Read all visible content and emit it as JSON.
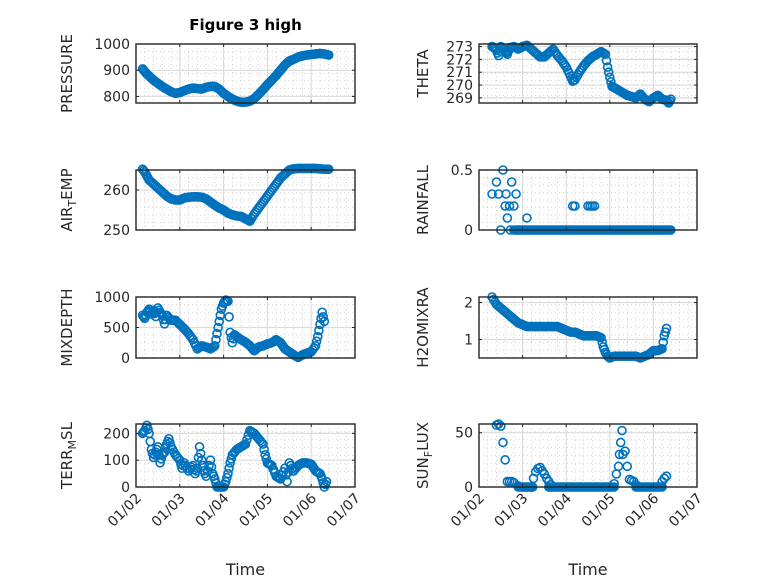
{
  "figure": {
    "title": "Figure 3 high",
    "marker_color": "#0072BD",
    "axis_color": "#262626"
  },
  "chart_data": [
    {
      "type": "scatter",
      "title": "Figure 3 high",
      "ylabel": "PRESSURE",
      "ylabel_sub": "",
      "xlabel": "",
      "ylim": [
        775,
        1000
      ],
      "yticks": [
        800,
        900,
        1000
      ],
      "ytick_labels": [
        "800",
        "900",
        "1000"
      ],
      "xlim": [
        0,
        5
      ],
      "xticks": [
        0,
        1,
        2,
        3,
        4,
        5
      ],
      "xtick_labels": [],
      "grid": true,
      "minor_grid": true,
      "x": [
        0.15,
        0.2,
        0.25,
        0.3,
        0.35,
        0.4,
        0.5,
        0.6,
        0.7,
        0.8,
        0.9,
        1.0,
        1.1,
        1.2,
        1.3,
        1.4,
        1.5,
        1.6,
        1.7,
        1.8,
        1.9,
        2.0,
        2.1,
        2.2,
        2.3,
        2.4,
        2.5,
        2.6,
        2.7,
        2.8,
        2.9,
        3.0,
        3.1,
        3.2,
        3.3,
        3.4,
        3.5,
        3.6,
        3.7,
        3.8,
        3.9,
        4.0,
        4.1,
        4.2,
        4.3,
        4.4
      ],
      "y": [
        905,
        895,
        885,
        878,
        870,
        862,
        850,
        838,
        828,
        818,
        812,
        815,
        822,
        828,
        832,
        830,
        828,
        835,
        838,
        838,
        828,
        812,
        800,
        790,
        782,
        778,
        778,
        782,
        792,
        808,
        826,
        845,
        862,
        880,
        900,
        920,
        935,
        942,
        950,
        955,
        958,
        960,
        962,
        964,
        962,
        958
      ]
    },
    {
      "type": "scatter",
      "title": "",
      "ylabel": "THETA",
      "ylabel_sub": "",
      "xlabel": "",
      "ylim": [
        268.6,
        273.2
      ],
      "yticks": [
        269,
        270,
        271,
        272,
        273
      ],
      "ytick_labels": [
        "269",
        "270",
        "271",
        "272",
        "273"
      ],
      "xlim": [
        0,
        5
      ],
      "xticks": [
        0,
        1,
        2,
        3,
        4,
        5
      ],
      "xtick_labels": [],
      "grid": true,
      "minor_grid": true,
      "x": [
        0.3,
        0.35,
        0.4,
        0.45,
        0.5,
        0.55,
        0.6,
        0.65,
        0.7,
        0.8,
        0.9,
        1.0,
        1.1,
        1.2,
        1.3,
        1.4,
        1.5,
        1.6,
        1.7,
        1.8,
        1.9,
        2.0,
        2.1,
        2.15,
        2.2,
        2.3,
        2.4,
        2.5,
        2.6,
        2.7,
        2.8,
        2.9,
        2.95,
        3.0,
        3.05,
        3.1,
        3.2,
        3.3,
        3.4,
        3.5,
        3.6,
        3.7,
        3.8,
        3.9,
        4.0,
        4.1,
        4.2,
        4.3,
        4.35,
        4.4
      ],
      "y": [
        273,
        272.9,
        272.7,
        272.3,
        273,
        272.8,
        272.6,
        272.4,
        272.9,
        273,
        272.8,
        273,
        273.1,
        272.8,
        272.5,
        272.2,
        272.2,
        272.5,
        272.8,
        272.3,
        271.9,
        271.4,
        270.7,
        270.3,
        270.4,
        271,
        271.5,
        271.9,
        272.2,
        272.4,
        272.6,
        272.4,
        271.4,
        270.6,
        269.9,
        269.8,
        269.6,
        269.4,
        269.2,
        269.1,
        269,
        269.3,
        268.9,
        268.7,
        269,
        269.2,
        268.9,
        268.8,
        268.6,
        268.9
      ]
    },
    {
      "type": "scatter",
      "title": "",
      "ylabel": "AIR",
      "ylabel_sub": "T",
      "ylabel_rest": "EMP",
      "xlabel": "",
      "ylim": [
        250,
        265
      ],
      "yticks": [
        250,
        260
      ],
      "ytick_labels": [
        "250",
        "260"
      ],
      "xlim": [
        0,
        5
      ],
      "xticks": [
        0,
        1,
        2,
        3,
        4,
        5
      ],
      "xtick_labels": [],
      "grid": true,
      "minor_grid": true,
      "x": [
        0.15,
        0.2,
        0.25,
        0.3,
        0.4,
        0.5,
        0.6,
        0.7,
        0.8,
        0.9,
        1.0,
        1.1,
        1.2,
        1.3,
        1.4,
        1.5,
        1.6,
        1.7,
        1.8,
        1.9,
        2.0,
        2.1,
        2.2,
        2.3,
        2.4,
        2.5,
        2.6,
        2.7,
        2.8,
        2.9,
        3.0,
        3.1,
        3.2,
        3.3,
        3.4,
        3.5,
        3.6,
        3.7,
        3.8,
        3.9,
        4.0,
        4.1,
        4.2,
        4.3,
        4.4
      ],
      "y": [
        265.2,
        264.5,
        263.5,
        262.5,
        261.5,
        260.5,
        259.5,
        258.5,
        257.8,
        257.5,
        257.5,
        258,
        258.2,
        258.3,
        258.3,
        258.2,
        257.8,
        257,
        256.2,
        255.5,
        255,
        254.2,
        253.8,
        253.5,
        253.4,
        252.8,
        252.2,
        254,
        255.5,
        257,
        258.5,
        260,
        261.5,
        263,
        264,
        265,
        265.3,
        265.4,
        265.4,
        265.4,
        265.4,
        265.4,
        265.3,
        265.2,
        265.2
      ]
    },
    {
      "type": "scatter",
      "title": "",
      "ylabel": "RAINFALL",
      "ylabel_sub": "",
      "xlabel": "",
      "ylim": [
        0,
        0.5
      ],
      "yticks": [
        0,
        0.5
      ],
      "ytick_labels": [
        "0",
        "0.5"
      ],
      "xlim": [
        0,
        5
      ],
      "xticks": [
        0,
        1,
        2,
        3,
        4,
        5
      ],
      "xtick_labels": [],
      "grid": true,
      "minor_grid": true,
      "x": [
        0.3,
        0.4,
        0.45,
        0.5,
        0.55,
        0.6,
        0.62,
        0.65,
        0.7,
        0.72,
        0.75,
        0.8,
        0.85,
        0.9,
        1.1,
        2.15,
        2.2,
        2.5,
        2.55,
        2.6,
        2.65
      ],
      "y": [
        0.3,
        0.4,
        0.3,
        0,
        0.5,
        0.2,
        0.3,
        0.1,
        0.2,
        0,
        0.4,
        0.2,
        0.3,
        0,
        0.1,
        0.2,
        0.2,
        0.2,
        0.2,
        0.2,
        0.2
      ],
      "zero_run": [
        0.8,
        4.4
      ]
    },
    {
      "type": "scatter",
      "title": "",
      "ylabel": "MIXDEPTH",
      "ylabel_sub": "",
      "xlabel": "",
      "ylim": [
        0,
        1000
      ],
      "yticks": [
        0,
        500,
        1000
      ],
      "ytick_labels": [
        "0",
        "500",
        "1000"
      ],
      "xlim": [
        0,
        5
      ],
      "xticks": [
        0,
        1,
        2,
        3,
        4,
        5
      ],
      "xtick_labels": [],
      "grid": true,
      "minor_grid": true,
      "x": [
        0.15,
        0.2,
        0.25,
        0.3,
        0.35,
        0.4,
        0.45,
        0.5,
        0.55,
        0.6,
        0.65,
        0.7,
        0.8,
        0.9,
        1.0,
        1.1,
        1.2,
        1.3,
        1.4,
        1.5,
        1.6,
        1.7,
        1.8,
        1.85,
        1.9,
        1.95,
        2.0,
        2.05,
        2.1,
        2.15,
        2.2,
        2.25,
        2.3,
        2.4,
        2.5,
        2.6,
        2.7,
        2.8,
        2.9,
        3.0,
        3.1,
        3.2,
        3.3,
        3.4,
        3.5,
        3.6,
        3.7,
        3.8,
        3.9,
        4.0,
        4.1,
        4.15,
        4.2,
        4.25,
        4.3
      ],
      "y": [
        700,
        650,
        750,
        800,
        720,
        780,
        680,
        820,
        750,
        700,
        560,
        700,
        620,
        620,
        550,
        480,
        400,
        300,
        150,
        200,
        180,
        150,
        200,
        400,
        600,
        800,
        900,
        950,
        930,
        420,
        250,
        380,
        350,
        300,
        260,
        200,
        120,
        180,
        200,
        230,
        250,
        300,
        250,
        150,
        100,
        50,
        10,
        50,
        80,
        100,
        200,
        350,
        550,
        750,
        600
      ]
    },
    {
      "type": "scatter",
      "title": "",
      "ylabel": "H2OMIXRA",
      "ylabel_sub": "",
      "xlabel": "",
      "ylim": [
        0.5,
        2.15
      ],
      "yticks": [
        1,
        2
      ],
      "ytick_labels": [
        "1",
        "2"
      ],
      "xlim": [
        0,
        5
      ],
      "xticks": [
        0,
        1,
        2,
        3,
        4,
        5
      ],
      "xtick_labels": [],
      "grid": true,
      "minor_grid": true,
      "x": [
        0.3,
        0.4,
        0.5,
        0.6,
        0.7,
        0.8,
        0.9,
        1.0,
        1.1,
        1.2,
        1.3,
        1.4,
        1.5,
        1.6,
        1.7,
        1.8,
        1.9,
        2.0,
        2.1,
        2.2,
        2.3,
        2.4,
        2.5,
        2.6,
        2.7,
        2.8,
        2.85,
        2.9,
        2.95,
        3.0,
        3.1,
        3.2,
        3.3,
        3.4,
        3.5,
        3.6,
        3.7,
        3.8,
        3.9,
        4.0,
        4.1,
        4.2,
        4.25,
        4.3
      ],
      "y": [
        2.15,
        1.95,
        1.85,
        1.75,
        1.65,
        1.55,
        1.45,
        1.4,
        1.35,
        1.35,
        1.35,
        1.35,
        1.35,
        1.35,
        1.35,
        1.35,
        1.3,
        1.25,
        1.2,
        1.2,
        1.15,
        1.1,
        1.1,
        1.1,
        1.1,
        1.05,
        0.8,
        0.65,
        0.55,
        0.5,
        0.55,
        0.55,
        0.55,
        0.55,
        0.55,
        0.55,
        0.5,
        0.55,
        0.6,
        0.7,
        0.7,
        0.75,
        1.1,
        1.3
      ]
    },
    {
      "type": "scatter",
      "title": "",
      "ylabel": "TERR",
      "ylabel_sub": "M",
      "ylabel_rest": "SL",
      "xlabel": "Time",
      "ylim": [
        0,
        235
      ],
      "yticks": [
        0,
        100,
        200
      ],
      "ytick_labels": [
        "0",
        "100",
        "200"
      ],
      "xlim": [
        0,
        5
      ],
      "xticks": [
        0,
        1,
        2,
        3,
        4,
        5
      ],
      "xtick_labels": [
        "01/02",
        "01/03",
        "01/04",
        "01/05",
        "01/06",
        "01/07"
      ],
      "grid": true,
      "minor_grid": true,
      "x": [
        0.15,
        0.2,
        0.25,
        0.3,
        0.35,
        0.4,
        0.45,
        0.5,
        0.55,
        0.6,
        0.65,
        0.7,
        0.75,
        0.8,
        0.9,
        1.0,
        1.05,
        1.1,
        1.2,
        1.3,
        1.35,
        1.4,
        1.45,
        1.5,
        1.55,
        1.6,
        1.7,
        1.75,
        1.8,
        1.85,
        1.9,
        1.95,
        2.0,
        2.05,
        2.1,
        2.15,
        2.2,
        2.3,
        2.4,
        2.5,
        2.6,
        2.7,
        2.8,
        2.9,
        2.95,
        3.0,
        3.1,
        3.2,
        3.3,
        3.4,
        3.45,
        3.5,
        3.6,
        3.7,
        3.8,
        3.9,
        4.0,
        4.1,
        4.2,
        4.25,
        4.3,
        4.35
      ],
      "y": [
        200,
        210,
        230,
        200,
        140,
        110,
        130,
        150,
        90,
        120,
        130,
        160,
        180,
        150,
        120,
        100,
        70,
        90,
        60,
        80,
        50,
        70,
        150,
        100,
        60,
        40,
        100,
        50,
        30,
        0,
        0,
        0,
        0,
        20,
        50,
        90,
        120,
        140,
        150,
        160,
        210,
        200,
        180,
        160,
        120,
        90,
        80,
        40,
        30,
        70,
        20,
        90,
        60,
        80,
        90,
        90,
        85,
        60,
        50,
        30,
        0,
        20
      ]
    },
    {
      "type": "scatter",
      "title": "",
      "ylabel": "SUN",
      "ylabel_sub": "F",
      "ylabel_rest": "LUX",
      "xlabel": "Time",
      "ylim": [
        0,
        58
      ],
      "yticks": [
        0,
        50
      ],
      "ytick_labels": [
        "0",
        "50"
      ],
      "xlim": [
        0,
        5
      ],
      "xticks": [
        0,
        1,
        2,
        3,
        4,
        5
      ],
      "xtick_labels": [
        "01/02",
        "01/03",
        "01/04",
        "01/05",
        "01/06",
        "01/07"
      ],
      "grid": true,
      "minor_grid": true,
      "x": [
        0.4,
        0.45,
        0.5,
        0.55,
        0.6,
        0.65,
        0.7,
        0.75,
        0.8,
        0.9,
        1.0,
        1.1,
        1.2,
        1.25,
        1.3,
        1.35,
        1.4,
        1.45,
        1.5,
        1.55,
        1.6,
        1.65,
        3.1,
        3.15,
        3.2,
        3.22,
        3.25,
        3.28,
        3.3,
        3.35,
        3.4,
        3.45,
        3.5,
        3.55,
        3.6,
        4.2,
        4.25,
        4.3
      ],
      "y": [
        57,
        58,
        56,
        41,
        25,
        5,
        5,
        5,
        4,
        1,
        0,
        0,
        0,
        8,
        14,
        17,
        18,
        15,
        12,
        8,
        5,
        2,
        3,
        12,
        19,
        30,
        41,
        52,
        30,
        33,
        19,
        7,
        6,
        5,
        2,
        5,
        8,
        10
      ],
      "zero_runs": [
        [
          0.9,
          1.25
        ],
        [
          1.6,
          3.1
        ],
        [
          3.6,
          4.2
        ]
      ]
    }
  ]
}
